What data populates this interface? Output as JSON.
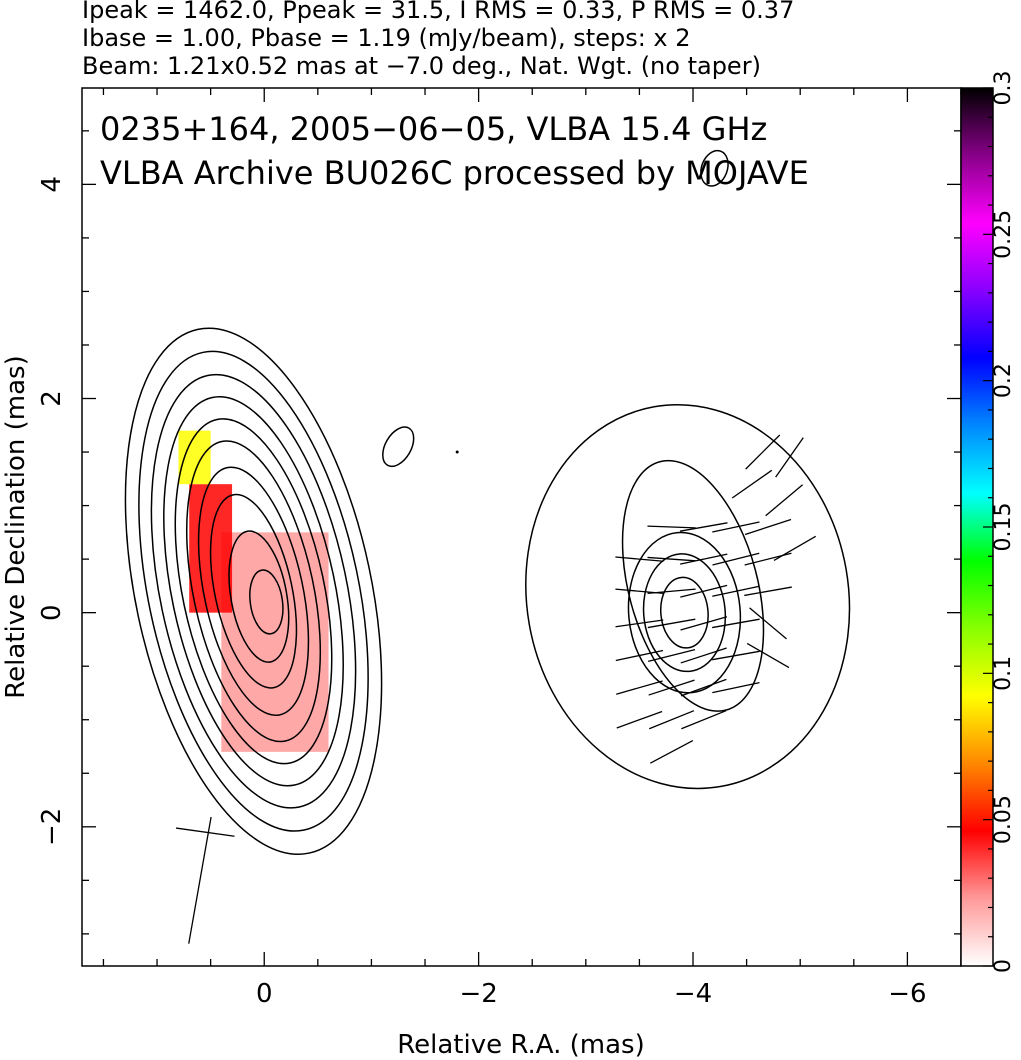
{
  "header": {
    "line1": "Ipeak = 1462.0, Ppeak = 31.5, I RMS = 0.33, P RMS = 0.37",
    "line2": "Ibase = 1.00, Pbase = 1.19 (mJy/beam), steps: x 2",
    "line3": "Beam: 1.21x0.52 mas at −7.0 deg., Nat. Wgt. (no taper)"
  },
  "chart_data": {
    "type": "contour",
    "title": "0235+164, 2005−06−05, VLBA 15.4 GHz",
    "subtitle": "VLBA Archive BU026C processed by MOJAVE",
    "xlabel": "Relative R.A. (mas)",
    "ylabel": "Relative Declination (mas)",
    "xlim": [
      1.7,
      -6.5
    ],
    "ylim": [
      -3.3,
      4.9
    ],
    "x_ticks": [
      0,
      -2,
      -4,
      -6
    ],
    "x_tick_labels": [
      "0",
      "−2",
      "−4",
      "−6"
    ],
    "y_ticks": [
      -2,
      0,
      2,
      4
    ],
    "y_tick_labels": [
      "−2",
      "0",
      "2",
      "4"
    ],
    "colorbar": {
      "min": 0,
      "max": 0.3,
      "ticks": [
        0,
        0.05,
        0.1,
        0.15,
        0.2,
        0.25,
        0.3
      ],
      "tick_labels": [
        "0",
        "0.05",
        "0.1",
        "0.15",
        "0.2",
        "0.25",
        "0.3"
      ],
      "colors": [
        "#ffffff",
        "#ff9999",
        "#ff0000",
        "#ff8800",
        "#ffff00",
        "#88ff00",
        "#00ff00",
        "#00ffff",
        "#0088ff",
        "#0000ff",
        "#8800ff",
        "#ff00ff",
        "#880088",
        "#000000"
      ]
    },
    "ipeak": 1462.0,
    "ppeak": 31.5,
    "i_rms": 0.33,
    "p_rms": 0.37,
    "ibase": 1.0,
    "pbase": 1.19,
    "contour_step_factor": 2,
    "beam": {
      "major_mas": 1.21,
      "minor_mas": 0.52,
      "pa_deg": -7.0
    },
    "grid": false,
    "left_panel": {
      "contour_center": [
        0.1,
        0.25
      ],
      "contours": [
        {
          "ra": 0.1,
          "dec": 0.2,
          "a": 1.1,
          "b": 2.5,
          "rot": -12
        },
        {
          "ra": 0.1,
          "dec": 0.2,
          "a": 0.98,
          "b": 2.28,
          "rot": -12
        },
        {
          "ra": 0.1,
          "dec": 0.2,
          "a": 0.87,
          "b": 2.06,
          "rot": -12
        },
        {
          "ra": 0.1,
          "dec": 0.2,
          "a": 0.76,
          "b": 1.85,
          "rot": -12
        },
        {
          "ra": 0.1,
          "dec": 0.2,
          "a": 0.66,
          "b": 1.64,
          "rot": -12
        },
        {
          "ra": 0.1,
          "dec": 0.2,
          "a": 0.56,
          "b": 1.43,
          "rot": -12
        },
        {
          "ra": 0.1,
          "dec": 0.2,
          "a": 0.46,
          "b": 1.18,
          "rot": -12
        },
        {
          "ra": 0.1,
          "dec": 0.2,
          "a": 0.36,
          "b": 0.92,
          "rot": -12
        },
        {
          "ra": 0.05,
          "dec": 0.15,
          "a": 0.26,
          "b": 0.62,
          "rot": -10
        },
        {
          "ra": -0.02,
          "dec": 0.1,
          "a": 0.15,
          "b": 0.3,
          "rot": -8
        }
      ],
      "polarization": [
        {
          "ra_min": -0.6,
          "ra_max": 0.4,
          "dec_min": -1.3,
          "dec_max": 0.75,
          "frac": 0.03
        },
        {
          "ra_min": 0.3,
          "ra_max": 0.7,
          "dec_min": 0.0,
          "dec_max": 1.2,
          "frac": 0.05
        },
        {
          "ra_min": 0.5,
          "ra_max": 0.8,
          "dec_min": 1.2,
          "dec_max": 1.7,
          "frac": 0.1
        }
      ],
      "evpa_ticks": [
        {
          "ra": 0.6,
          "dec": -2.5,
          "angle_deg": 80,
          "length_mas": 1.2
        },
        {
          "ra": 0.55,
          "dec": -2.05,
          "angle_deg": -8,
          "length_mas": 0.55
        }
      ]
    },
    "right_panel": {
      "contour_center": [
        -3.9,
        0.0
      ],
      "contours": [
        {
          "ra": -3.95,
          "dec": 0.15,
          "a": 1.5,
          "b": 1.8,
          "rot": -10
        },
        {
          "ra": -4.0,
          "dec": 0.25,
          "a": 0.6,
          "b": 1.2,
          "rot": -15
        },
        {
          "ra": -3.92,
          "dec": 0.0,
          "a": 0.52,
          "b": 0.75,
          "rot": -5
        },
        {
          "ra": -3.92,
          "dec": 0.0,
          "a": 0.38,
          "b": 0.55,
          "rot": -5
        },
        {
          "ra": -3.92,
          "dec": 0.0,
          "a": 0.22,
          "b": 0.33,
          "rot": -5
        }
      ],
      "evpa_ticks": [
        {
          "ra": -3.5,
          "dec": 0.5,
          "angle_deg": -5
        },
        {
          "ra": -3.5,
          "dec": 0.2,
          "angle_deg": -5
        },
        {
          "ra": -3.5,
          "dec": -0.1,
          "angle_deg": 8
        },
        {
          "ra": -3.5,
          "dec": -0.4,
          "angle_deg": 12
        },
        {
          "ra": -3.5,
          "dec": -0.7,
          "angle_deg": 16
        },
        {
          "ra": -3.5,
          "dec": -1.0,
          "angle_deg": 20
        },
        {
          "ra": -3.8,
          "dec": 0.8,
          "angle_deg": -2
        },
        {
          "ra": -3.8,
          "dec": 0.5,
          "angle_deg": -4
        },
        {
          "ra": -3.8,
          "dec": 0.2,
          "angle_deg": 5
        },
        {
          "ra": -3.8,
          "dec": -0.1,
          "angle_deg": 10
        },
        {
          "ra": -3.8,
          "dec": -0.4,
          "angle_deg": 14
        },
        {
          "ra": -3.8,
          "dec": -0.7,
          "angle_deg": 18
        },
        {
          "ra": -3.8,
          "dec": -1.0,
          "angle_deg": 22
        },
        {
          "ra": -3.8,
          "dec": -1.3,
          "angle_deg": 28
        },
        {
          "ra": -4.1,
          "dec": 0.8,
          "angle_deg": 10
        },
        {
          "ra": -4.1,
          "dec": 0.5,
          "angle_deg": 12
        },
        {
          "ra": -4.1,
          "dec": 0.2,
          "angle_deg": 14
        },
        {
          "ra": -4.1,
          "dec": -0.1,
          "angle_deg": 16
        },
        {
          "ra": -4.1,
          "dec": -0.4,
          "angle_deg": 18
        },
        {
          "ra": -4.1,
          "dec": -0.7,
          "angle_deg": 20
        },
        {
          "ra": -4.1,
          "dec": -1.0,
          "angle_deg": 22
        },
        {
          "ra": -4.4,
          "dec": 0.8,
          "angle_deg": 12
        },
        {
          "ra": -4.4,
          "dec": 0.5,
          "angle_deg": 14
        },
        {
          "ra": -4.4,
          "dec": 0.2,
          "angle_deg": 12
        },
        {
          "ra": -4.4,
          "dec": -0.1,
          "angle_deg": 10
        },
        {
          "ra": -4.4,
          "dec": -0.4,
          "angle_deg": 10
        },
        {
          "ra": -4.4,
          "dec": -0.7,
          "angle_deg": 12
        },
        {
          "ra": -4.7,
          "dec": 0.8,
          "angle_deg": 18
        },
        {
          "ra": -4.7,
          "dec": 0.5,
          "angle_deg": 14
        },
        {
          "ra": -4.7,
          "dec": 0.2,
          "angle_deg": 10
        },
        {
          "ra": -4.7,
          "dec": -0.1,
          "angle_deg": -40
        },
        {
          "ra": -4.7,
          "dec": -0.4,
          "angle_deg": -30
        },
        {
          "ra": -4.55,
          "dec": 1.2,
          "angle_deg": 35
        },
        {
          "ra": -4.65,
          "dec": 1.5,
          "angle_deg": 45
        },
        {
          "ra": -4.9,
          "dec": 1.45,
          "angle_deg": 55
        },
        {
          "ra": -4.85,
          "dec": 1.05,
          "angle_deg": 40
        },
        {
          "ra": -4.95,
          "dec": 0.6,
          "angle_deg": 30
        }
      ]
    },
    "extra_features": [
      {
        "ra": -1.25,
        "dec": 1.55,
        "a": 0.12,
        "b": 0.2,
        "rot": 30
      },
      {
        "ra": -4.2,
        "dec": 4.15,
        "a": 0.12,
        "b": 0.17,
        "rot": 20
      }
    ],
    "dot_marker": {
      "ra": -1.8,
      "dec": 1.5
    }
  }
}
